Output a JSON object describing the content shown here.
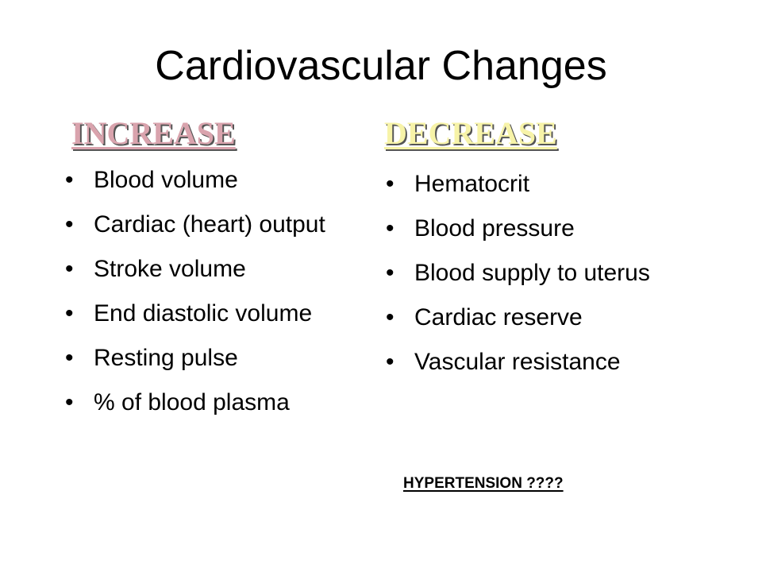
{
  "slide": {
    "title": "Cardiovascular Changes",
    "increase": {
      "heading": "INCREASE",
      "items": [
        "Blood volume",
        "Cardiac (heart) output",
        "Stroke volume",
        "End diastolic volume",
        "Resting pulse",
        "% of blood plasma"
      ]
    },
    "decrease": {
      "heading": "DECREASE",
      "items": [
        "Hematocrit",
        "Blood pressure",
        "Blood supply to uterus",
        "Cardiac reserve",
        "Vascular resistance"
      ]
    },
    "note": "HYPERTENSION ????",
    "bullet_glyph": "•",
    "colors": {
      "increase_heading": "#d9a3ad",
      "decrease_heading": "#f7f3a8",
      "background": "#ffffff",
      "text": "#000000"
    }
  }
}
